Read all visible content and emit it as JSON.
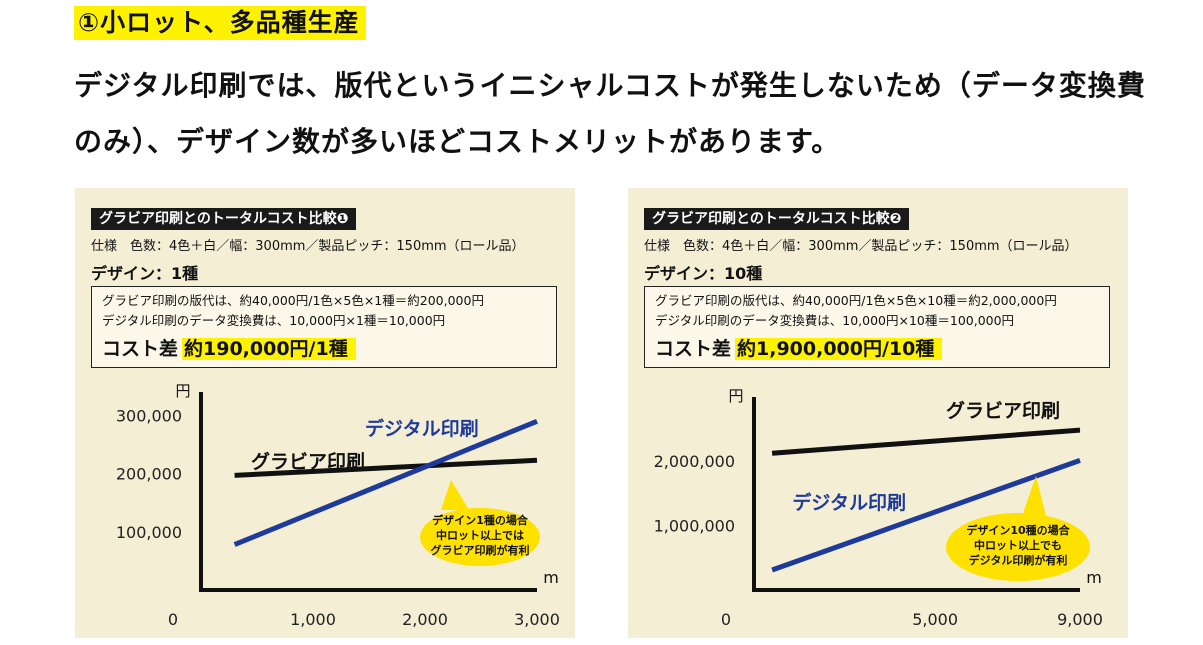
{
  "heading": "①小ロット、多品種生産",
  "lead_text": "デジタル印刷では、版代というイニシャルコストが発生しないため（データ変換費のみ）、デザイン数が多いほどコストメリットがあります。",
  "colors": {
    "highlight": "#fff200",
    "panel_bg": "#f4eed5",
    "gravure_line": "#111111",
    "digital_line": "#1e3a9b",
    "callout": "#ffe100"
  },
  "panels": [
    {
      "title": "グラビア印刷とのトータルコスト比較❶",
      "spec": "仕様　色数：4色＋白／幅：300mm／製品ピッチ：150mm（ロール品）",
      "design": "デザイン：1種",
      "box_line1": "グラビア印刷の版代は、約40,000円/1色×5色×1種＝約200,000円",
      "box_line2": "デジタル印刷のデータ変換費は、10,000円×1種＝10,000円",
      "diff_label": "コスト差",
      "diff_value": "約190,000円/1種",
      "callout": [
        "デザイン1種の場合",
        "中ロット以上では",
        "グラビア印刷が有利"
      ]
    },
    {
      "title": "グラビア印刷とのトータルコスト比較❷",
      "spec": "仕様　色数：4色＋白／幅：300mm／製品ピッチ：150mm（ロール品）",
      "design": "デザイン：10種",
      "box_line1": "グラビア印刷の版代は、約40,000円/1色×5色×10種＝約2,000,000円",
      "box_line2": "デジタル印刷のデータ変換費は、10,000円×10種＝100,000円",
      "diff_label": "コスト差",
      "diff_value": "約1,900,000円/10種",
      "callout": [
        "デザイン10種の場合",
        "中ロット以上でも",
        "デジタル印刷が有利"
      ]
    }
  ],
  "chart_data": [
    {
      "type": "line",
      "xlabel": "m",
      "ylabel": "円",
      "xlim": [
        0,
        3000
      ],
      "ylim": [
        0,
        330000
      ],
      "x_ticks": [
        "0",
        "1,000",
        "2,000",
        "3,000"
      ],
      "y_ticks": [
        "100,000",
        "200,000",
        "300,000"
      ],
      "y_tick_values": [
        100000,
        200000,
        300000
      ],
      "x_tick_values": [
        0,
        1000,
        2000,
        3000
      ],
      "grid": false,
      "series": [
        {
          "name": "グラビア印刷",
          "x": [
            300,
            3000
          ],
          "y": [
            197000,
            223000
          ]
        },
        {
          "name": "デジタル印刷",
          "x": [
            300,
            3000
          ],
          "y": [
            78000,
            290000
          ]
        }
      ]
    },
    {
      "type": "line",
      "xlabel": "m",
      "ylabel": "円",
      "xlim": [
        0,
        9000
      ],
      "ylim": [
        0,
        2900000
      ],
      "x_ticks": [
        "0",
        "5,000",
        "9,000"
      ],
      "y_ticks": [
        "1,000,000",
        "2,000,000"
      ],
      "y_tick_values": [
        1000000,
        2000000
      ],
      "x_tick_values": [
        0,
        5000,
        9000
      ],
      "grid": false,
      "series": [
        {
          "name": "グラビア印刷",
          "x": [
            500,
            9000
          ],
          "y": [
            2120000,
            2480000
          ]
        },
        {
          "name": "デジタル印刷",
          "x": [
            500,
            9000
          ],
          "y": [
            310000,
            2010000
          ]
        }
      ]
    }
  ]
}
